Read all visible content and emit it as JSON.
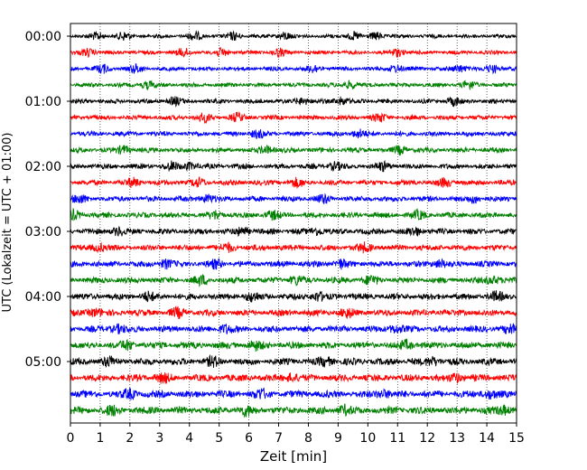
{
  "chart_data": {
    "type": "line",
    "subtype": "seismic-helicorder",
    "xlabel": "Zeit  [min]",
    "ylabel": "UTC (Lokalzeit = UTC + 01:00)",
    "xlim": [
      0,
      15
    ],
    "x_ticks": [
      "0",
      "1",
      "2",
      "3",
      "4",
      "5",
      "6",
      "7",
      "8",
      "9",
      "10",
      "11",
      "12",
      "13",
      "14",
      "15"
    ],
    "y_ticks": [
      "00:00",
      "01:00",
      "02:00",
      "03:00",
      "04:00",
      "05:00"
    ],
    "trace_interval_minutes": 15,
    "trace_count": 24,
    "trace_colors": [
      "#000000",
      "#ff0000",
      "#0000ff",
      "#008000"
    ],
    "grid": {
      "vertical_dotted": true,
      "at_minutes": [
        1,
        2,
        3,
        4,
        5,
        6,
        7,
        8,
        9,
        10,
        11,
        12,
        13,
        14
      ]
    },
    "series": [
      {
        "start": "00:00",
        "color": "#000000",
        "events_min": [
          0.9,
          1.8,
          4.2,
          5.5,
          7.2,
          9.5,
          10.3
        ]
      },
      {
        "start": "00:15",
        "color": "#ff0000",
        "events_min": [
          0.6,
          3.8,
          5.1,
          7.0,
          11.0
        ]
      },
      {
        "start": "00:30",
        "color": "#0000ff",
        "events_min": [
          1.1,
          2.2,
          8.2,
          10.9,
          13.1,
          14.2
        ]
      },
      {
        "start": "00:45",
        "color": "#008000",
        "events_min": [
          2.6,
          9.4,
          13.4
        ]
      },
      {
        "start": "01:00",
        "color": "#000000",
        "events_min": [
          3.5,
          7.8,
          9.1,
          12.9
        ]
      },
      {
        "start": "01:15",
        "color": "#ff0000",
        "events_min": [
          4.5,
          5.6,
          10.4
        ]
      },
      {
        "start": "01:30",
        "color": "#0000ff",
        "events_min": [
          6.3,
          9.7
        ]
      },
      {
        "start": "01:45",
        "color": "#008000",
        "events_min": [
          1.8,
          6.6,
          11.1
        ]
      },
      {
        "start": "02:00",
        "color": "#000000",
        "events_min": [
          3.4,
          4.0,
          8.9,
          10.5
        ]
      },
      {
        "start": "02:15",
        "color": "#ff0000",
        "events_min": [
          2.1,
          4.3,
          7.6,
          12.6
        ]
      },
      {
        "start": "02:30",
        "color": "#0000ff",
        "events_min": [
          0.3,
          4.6,
          8.5,
          13.6
        ]
      },
      {
        "start": "02:45",
        "color": "#008000",
        "events_min": [
          0.1,
          4.9,
          6.8,
          11.7
        ]
      },
      {
        "start": "03:00",
        "color": "#000000",
        "events_min": [
          1.6,
          5.8,
          8.3,
          11.6
        ]
      },
      {
        "start": "03:15",
        "color": "#ff0000",
        "events_min": [
          1.0,
          5.3,
          9.9
        ]
      },
      {
        "start": "03:30",
        "color": "#0000ff",
        "events_min": [
          3.2,
          4.9,
          9.1,
          12.4
        ]
      },
      {
        "start": "03:45",
        "color": "#008000",
        "events_min": [
          4.4,
          7.6,
          10.1,
          14.2
        ]
      },
      {
        "start": "04:00",
        "color": "#000000",
        "events_min": [
          2.6,
          6.1,
          8.3,
          14.3
        ]
      },
      {
        "start": "04:15",
        "color": "#ff0000",
        "events_min": [
          0.8,
          3.6,
          9.3
        ]
      },
      {
        "start": "04:30",
        "color": "#0000ff",
        "events_min": [
          1.6,
          5.2,
          10.9,
          14.8
        ]
      },
      {
        "start": "04:45",
        "color": "#008000",
        "events_min": [
          1.9,
          6.2,
          11.3
        ]
      },
      {
        "start": "05:00",
        "color": "#000000",
        "events_min": [
          1.3,
          4.8,
          8.6,
          12.2
        ]
      },
      {
        "start": "05:15",
        "color": "#ff0000",
        "events_min": [
          3.1,
          7.4,
          13.0
        ]
      },
      {
        "start": "05:30",
        "color": "#0000ff",
        "events_min": [
          2.0,
          6.4,
          10.5,
          14.1
        ]
      },
      {
        "start": "05:45",
        "color": "#008000",
        "events_min": [
          1.4,
          5.9,
          9.2,
          14.6
        ]
      }
    ]
  }
}
